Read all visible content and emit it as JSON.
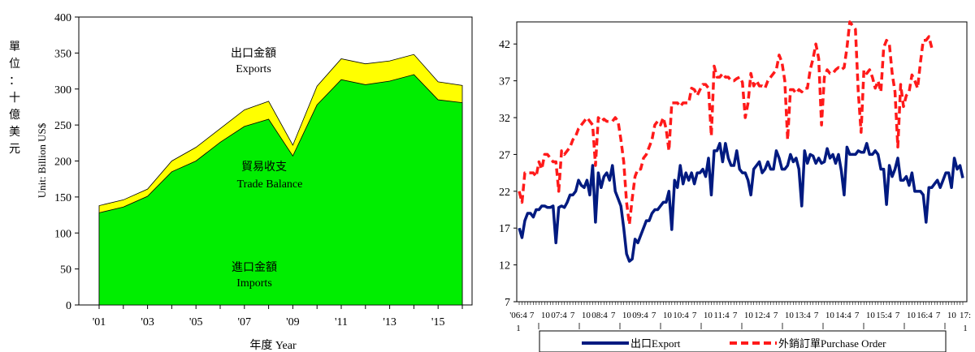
{
  "chart_data": [
    {
      "type": "area",
      "annotations": {
        "exports_zh": "出口金額",
        "exports_en": "Exports",
        "balance_zh": "貿易收支",
        "balance_en": "Trade Balance",
        "imports_zh": "進口金額",
        "imports_en": "Imports"
      },
      "ylabel_zh": [
        "單",
        "位",
        "：",
        "十",
        "億",
        "美",
        "元"
      ],
      "ylabel_en": "Unit: Billion US$",
      "xlabel": "年度 Year",
      "ylim": [
        0,
        400
      ],
      "yticks": [
        "0",
        "50",
        "100",
        "150",
        "200",
        "250",
        "300",
        "350",
        "400"
      ],
      "years": [
        2001,
        2002,
        2003,
        2004,
        2005,
        2006,
        2007,
        2008,
        2009,
        2010,
        2011,
        2012,
        2013,
        2014,
        2015,
        2016
      ],
      "xtick_labels": [
        "'01",
        "'03",
        "'05",
        "'07",
        "'09",
        "'11",
        "'13",
        "'15"
      ],
      "series": [
        {
          "name": "Exports",
          "color": "#ffff00",
          "values": [
            138,
            146,
            161,
            200,
            219,
            245,
            271,
            283,
            222,
            304,
            342,
            335,
            339,
            348,
            310,
            305
          ]
        },
        {
          "name": "Imports",
          "color": "#00ee00",
          "values": [
            128,
            136,
            151,
            185,
            200,
            226,
            248,
            258,
            207,
            278,
            313,
            306,
            311,
            320,
            285,
            281
          ]
        }
      ]
    },
    {
      "type": "line",
      "ylim": [
        7,
        45
      ],
      "yticks": [
        "7",
        "12",
        "17",
        "22",
        "27",
        "32",
        "37",
        "42"
      ],
      "xtick_rows": [
        [
          "'06:4",
          "7",
          "10",
          "07:4",
          "7",
          "10",
          "08:4",
          "7",
          "10",
          "09:4",
          "7",
          "10",
          "10:4",
          "7",
          "10",
          "11:4",
          "7",
          "10",
          "12:4",
          "7",
          "10",
          "13:4",
          "7",
          "10",
          "14:4",
          "7",
          "10",
          "15:4",
          "7",
          "10",
          "16:4",
          "7",
          "10",
          "17:"
        ],
        [
          "1",
          "1"
        ]
      ],
      "series": [
        {
          "name": "出口Export",
          "color": "#001a80",
          "dash": "solid",
          "values": [
            17,
            15.7,
            18,
            19,
            19,
            18.5,
            19.5,
            19.5,
            20,
            20,
            19.8,
            19.8,
            20,
            15,
            19.8,
            20,
            19.8,
            20.5,
            21.5,
            21.5,
            22,
            23.5,
            22.8,
            22.5,
            23.5,
            21.5,
            25.5,
            17.8,
            24.5,
            22.5,
            24,
            24.5,
            23.5,
            25.5,
            22,
            21,
            20,
            17,
            13.5,
            12.5,
            12.8,
            15.5,
            15,
            16,
            17,
            18,
            18,
            19,
            19.5,
            19.5,
            20,
            20.5,
            20.5,
            22,
            16.8,
            23.5,
            22.5,
            25.5,
            23,
            24.5,
            23.5,
            24.5,
            23,
            24.5,
            24.5,
            25,
            24,
            26.5,
            21.5,
            27.5,
            27.5,
            28.5,
            26,
            28.5,
            26.5,
            25.5,
            25.5,
            27.5,
            25,
            24.5,
            24.5,
            23.5,
            21.5,
            25,
            25.5,
            26,
            24.5,
            25,
            26,
            25,
            25,
            27.5,
            26.5,
            25,
            25,
            25.5,
            27,
            26,
            26.5,
            25,
            20,
            27.5,
            25.8,
            27,
            26.8,
            25.8,
            26.5,
            25.8,
            26,
            27.8,
            26.5,
            27,
            25.8,
            27,
            24.8,
            21.5,
            28,
            27,
            27,
            27,
            27.5,
            27.3,
            27.3,
            28.5,
            27,
            27,
            27.5,
            27,
            25,
            25,
            20.2,
            25.5,
            24,
            25,
            26.5,
            23.5,
            23.5,
            24,
            22.8,
            24.5,
            22,
            22,
            22,
            21.5,
            17.8,
            22.5,
            22.5,
            23,
            23.5,
            22.5,
            23.5,
            24.5,
            24.5,
            22.5,
            26.5,
            25,
            25.5,
            23.8
          ]
        },
        {
          "name": "外銷訂單Purchase Order",
          "color": "#ff1a1a",
          "dash": "dashed",
          "values": [
            22,
            20.5,
            24.5,
            24.5,
            24.5,
            24.5,
            24,
            26,
            25,
            27,
            27,
            26.5,
            26,
            26,
            22,
            27.5,
            27,
            27.5,
            28,
            29,
            29.5,
            30.5,
            31,
            31.5,
            32,
            31.5,
            31,
            25.5,
            32,
            31.5,
            31.8,
            31.5,
            31.5,
            31.5,
            32,
            31.5,
            29,
            26,
            20.5,
            17.5,
            21,
            24,
            25,
            25,
            26.5,
            27,
            28,
            29,
            31,
            31.5,
            31,
            32,
            30.5,
            27.5,
            34,
            34,
            34,
            33.5,
            34,
            34,
            34,
            36,
            35.8,
            35,
            35.8,
            36.5,
            36.5,
            36,
            29.5,
            39,
            37.5,
            37.5,
            38,
            37.5,
            37.5,
            37,
            37,
            37.3,
            37.5,
            36.8,
            32,
            34,
            38,
            36.3,
            37,
            36.3,
            36.3,
            36,
            37,
            37.5,
            38,
            38.5,
            40.5,
            39.5,
            37,
            29,
            35.8,
            35.8,
            35.3,
            35.8,
            35.5,
            36,
            36,
            38.5,
            40,
            42,
            40,
            31,
            37.5,
            38.5,
            38,
            38,
            38.5,
            38.8,
            38.5,
            38.8,
            41.5,
            45,
            44.5,
            44,
            35.5,
            30,
            38.5,
            38,
            38.5,
            37.5,
            36,
            37,
            35.5,
            41.5,
            42.5,
            42,
            38,
            35.5,
            28,
            36.5,
            33.5,
            35,
            35.5,
            37.8,
            37,
            36,
            39.5,
            42.5,
            42.5,
            43,
            41.5
          ]
        }
      ]
    }
  ]
}
